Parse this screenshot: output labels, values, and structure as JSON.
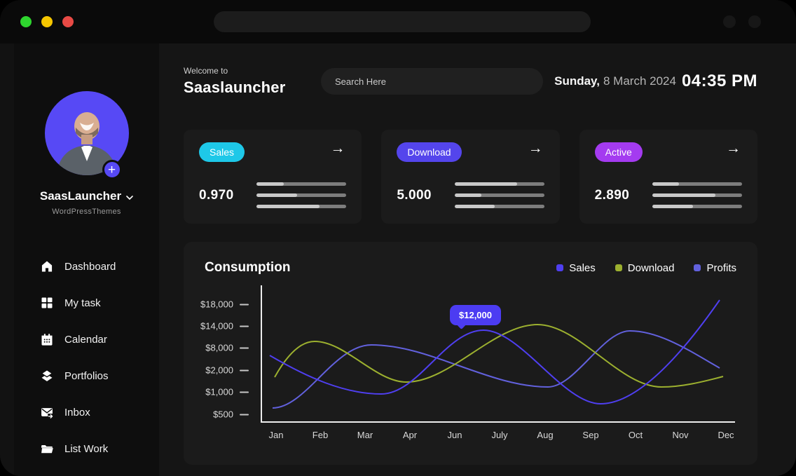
{
  "topbar": {
    "traffic_lights": [
      "#2ed52e",
      "#f5c600",
      "#e84a45"
    ]
  },
  "sidebar": {
    "profile": {
      "name": "SaasLauncher",
      "subtitle": "WordPressThemes",
      "avatar_accent": "#5749f5",
      "plus_label": "+"
    },
    "nav": [
      {
        "label": "Dashboard"
      },
      {
        "label": "My task"
      },
      {
        "label": "Calendar"
      },
      {
        "label": "Portfolios"
      },
      {
        "label": "Inbox"
      },
      {
        "label": "List Work"
      }
    ]
  },
  "header": {
    "welcome": "Welcome to",
    "app_name": "Saaslauncher",
    "search_placeholder": "Search Here",
    "date_day": "Sunday,",
    "date_rest": "8 March 2024",
    "time": "04:35 PM"
  },
  "stats": [
    {
      "label": "Sales",
      "badge_color": "#1ec8e8",
      "value": "0.970",
      "arrow": "→",
      "bars": [
        30,
        45,
        70
      ]
    },
    {
      "label": "Download",
      "badge_color": "#5445ec",
      "value": "5.000",
      "arrow": "→",
      "bars": [
        70,
        30,
        45
      ]
    },
    {
      "label": "Active",
      "badge_color": "#a43bf0",
      "value": "2.890",
      "arrow": "→",
      "bars": [
        30,
        70,
        45
      ]
    }
  ],
  "chart": {
    "title": "Consumption",
    "legend": [
      {
        "label": "Sales",
        "color": "#4f3ff0"
      },
      {
        "label": "Download",
        "color": "#9cb02f"
      },
      {
        "label": "Profits",
        "color": "#6261dd"
      }
    ],
    "y_ticks": [
      "$18,000",
      "$14,000",
      "$8,000",
      "$2,000",
      "$1,000",
      "$500"
    ],
    "x_ticks": [
      "Jan",
      "Feb",
      "Mar",
      "Apr",
      "Jun",
      "July",
      "Aug",
      "Sep",
      "Oct",
      "Nov",
      "Dec"
    ],
    "tooltip": {
      "text": "$12,000",
      "color": "#4c3cf2"
    }
  },
  "chart_data": {
    "type": "line",
    "x": [
      "Jan",
      "Feb",
      "Mar",
      "Apr",
      "Jun",
      "July",
      "Aug",
      "Sep",
      "Oct",
      "Nov",
      "Dec"
    ],
    "series": [
      {
        "name": "Sales",
        "color": "#4f3ff0",
        "values": [
          6000,
          1800,
          900,
          1600,
          10000,
          12000,
          6300,
          830,
          800,
          4400,
          19000
        ]
      },
      {
        "name": "Download",
        "color": "#9cb02f",
        "values": [
          1700,
          9700,
          6300,
          1500,
          2100,
          10000,
          14400,
          7200,
          1300,
          1200,
          1700
        ]
      },
      {
        "name": "Profits",
        "color": "#6261dd",
        "values": [
          640,
          2100,
          8700,
          6300,
          1800,
          1300,
          1200,
          1600,
          12500,
          10000,
          2100
        ]
      }
    ],
    "title": "Consumption",
    "xlabel": "",
    "ylabel": "",
    "y_tick_values": [
      500,
      1000,
      2000,
      8000,
      14000,
      18000
    ],
    "ylim": [
      500,
      18000
    ],
    "grid": false,
    "legend_position": "top-right",
    "annotation": {
      "label": "$12,000",
      "x": "July",
      "series": "Sales"
    }
  }
}
